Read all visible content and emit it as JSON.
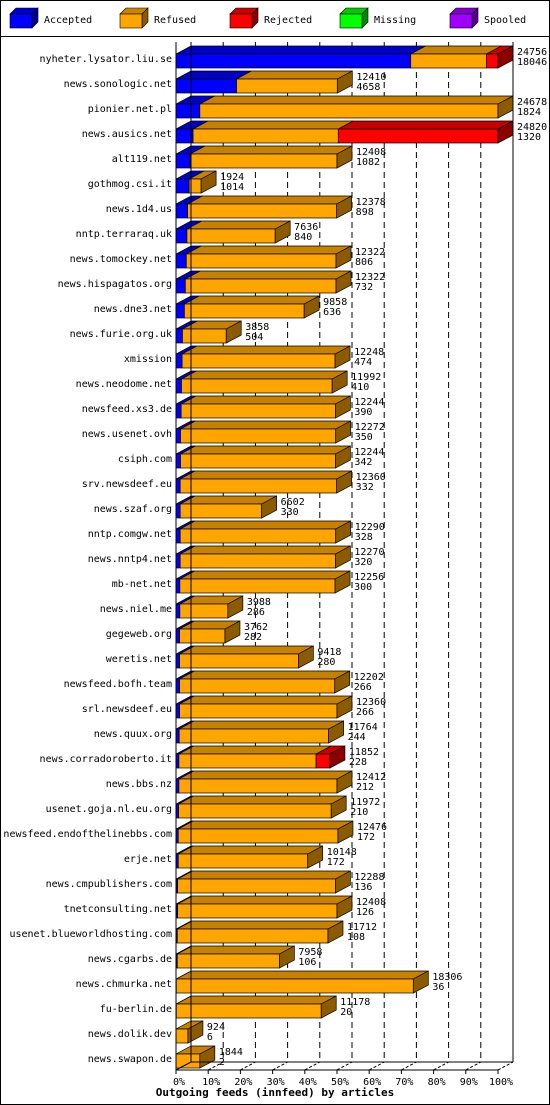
{
  "chart_data": {
    "type": "bar",
    "orientation": "horizontal",
    "stacked": true,
    "three_d": true,
    "title": "Outgoing feeds (innfeed) by articles",
    "grid": true,
    "legend_placement": "top",
    "xlim": [
      0,
      100
    ],
    "x_ticks": [
      "0%",
      "10%",
      "20%",
      "30%",
      "40%",
      "50%",
      "60%",
      "70%",
      "80%",
      "90%",
      "100%"
    ],
    "legend": [
      {
        "key": "accepted",
        "label": "Accepted",
        "color": "#0000ff"
      },
      {
        "key": "refused",
        "label": "Refused",
        "color": "#ffa500"
      },
      {
        "key": "rejected",
        "label": "Rejected",
        "color": "#ff0000"
      },
      {
        "key": "missing",
        "label": "Missing",
        "color": "#00ff00"
      },
      {
        "key": "spooled",
        "label": "Spooled",
        "color": "#a000ff"
      }
    ],
    "rows": [
      {
        "label": "nyheter.lysator.liu.se",
        "total": "24756",
        "accepted": "18046",
        "pct": {
          "accepted": 72.9,
          "refused": 23.5,
          "rejected": 3.6,
          "missing": 0,
          "spooled": 0
        }
      },
      {
        "label": "news.sonologic.net",
        "total": "12410",
        "accepted": "4658",
        "pct": {
          "accepted": 18.8,
          "refused": 31.3,
          "rejected": 0,
          "missing": 0,
          "spooled": 0
        }
      },
      {
        "label": "pionier.net.pl",
        "total": "24678",
        "accepted": "1824",
        "pct": {
          "accepted": 7.4,
          "refused": 92.6,
          "rejected": 0,
          "missing": 0,
          "spooled": 0
        }
      },
      {
        "label": "news.ausics.net",
        "total": "24820",
        "accepted": "1320",
        "pct": {
          "accepted": 5.3,
          "refused": 45.1,
          "rejected": 49.6,
          "missing": 0,
          "spooled": 0
        }
      },
      {
        "label": "alt119.net",
        "total": "12408",
        "accepted": "1082",
        "pct": {
          "accepted": 4.4,
          "refused": 45.6,
          "rejected": 0,
          "missing": 0,
          "spooled": 0
        }
      },
      {
        "label": "gothmog.csi.it",
        "total": "1924",
        "accepted": "1014",
        "pct": {
          "accepted": 4.1,
          "refused": 3.7,
          "rejected": 0,
          "missing": 0,
          "spooled": 0
        }
      },
      {
        "label": "news.1d4.us",
        "total": "12378",
        "accepted": "898",
        "pct": {
          "accepted": 3.6,
          "refused": 46.3,
          "rejected": 0,
          "missing": 0,
          "spooled": 0
        }
      },
      {
        "label": "nntp.terraraq.uk",
        "total": "7636",
        "accepted": "840",
        "pct": {
          "accepted": 3.4,
          "refused": 27.4,
          "rejected": 0,
          "missing": 0,
          "spooled": 0
        }
      },
      {
        "label": "news.tomockey.net",
        "total": "12322",
        "accepted": "806",
        "pct": {
          "accepted": 3.2,
          "refused": 46.5,
          "rejected": 0,
          "missing": 0,
          "spooled": 0
        }
      },
      {
        "label": "news.hispagatos.org",
        "total": "12322",
        "accepted": "732",
        "pct": {
          "accepted": 2.9,
          "refused": 46.8,
          "rejected": 0,
          "missing": 0,
          "spooled": 0
        }
      },
      {
        "label": "news.dne3.net",
        "total": "9858",
        "accepted": "636",
        "pct": {
          "accepted": 2.6,
          "refused": 37.2,
          "rejected": 0,
          "missing": 0,
          "spooled": 0
        }
      },
      {
        "label": "news.furie.org.uk",
        "total": "3858",
        "accepted": "504",
        "pct": {
          "accepted": 2.0,
          "refused": 13.6,
          "rejected": 0,
          "missing": 0,
          "spooled": 0
        }
      },
      {
        "label": "xmission",
        "total": "12248",
        "accepted": "474",
        "pct": {
          "accepted": 1.9,
          "refused": 47.5,
          "rejected": 0,
          "missing": 0,
          "spooled": 0
        }
      },
      {
        "label": "news.neodome.net",
        "total": "11992",
        "accepted": "410",
        "pct": {
          "accepted": 1.7,
          "refused": 46.8,
          "rejected": 0,
          "missing": 0,
          "spooled": 0
        }
      },
      {
        "label": "newsfeed.xs3.de",
        "total": "12244",
        "accepted": "390",
        "pct": {
          "accepted": 1.6,
          "refused": 47.9,
          "rejected": 0,
          "missing": 0,
          "spooled": 0
        }
      },
      {
        "label": "news.usenet.ovh",
        "total": "12272",
        "accepted": "350",
        "pct": {
          "accepted": 1.4,
          "refused": 48.2,
          "rejected": 0,
          "missing": 0,
          "spooled": 0
        }
      },
      {
        "label": "csiph.com",
        "total": "12244",
        "accepted": "342",
        "pct": {
          "accepted": 1.4,
          "refused": 48.1,
          "rejected": 0,
          "missing": 0,
          "spooled": 0
        }
      },
      {
        "label": "srv.newsdeef.eu",
        "total": "12360",
        "accepted": "332",
        "pct": {
          "accepted": 1.3,
          "refused": 48.6,
          "rejected": 0,
          "missing": 0,
          "spooled": 0
        }
      },
      {
        "label": "news.szaf.org",
        "total": "6602",
        "accepted": "330",
        "pct": {
          "accepted": 1.3,
          "refused": 25.3,
          "rejected": 0,
          "missing": 0,
          "spooled": 0
        }
      },
      {
        "label": "nntp.comgw.net",
        "total": "12290",
        "accepted": "328",
        "pct": {
          "accepted": 1.3,
          "refused": 48.3,
          "rejected": 0,
          "missing": 0,
          "spooled": 0
        }
      },
      {
        "label": "news.nntp4.net",
        "total": "12270",
        "accepted": "320",
        "pct": {
          "accepted": 1.3,
          "refused": 48.2,
          "rejected": 0,
          "missing": 0,
          "spooled": 0
        }
      },
      {
        "label": "mb-net.net",
        "total": "12256",
        "accepted": "300",
        "pct": {
          "accepted": 1.2,
          "refused": 48.2,
          "rejected": 0,
          "missing": 0,
          "spooled": 0
        }
      },
      {
        "label": "news.niel.me",
        "total": "3988",
        "accepted": "286",
        "pct": {
          "accepted": 1.2,
          "refused": 14.9,
          "rejected": 0,
          "missing": 0,
          "spooled": 0
        }
      },
      {
        "label": "gegeweb.org",
        "total": "3762",
        "accepted": "282",
        "pct": {
          "accepted": 1.1,
          "refused": 14.1,
          "rejected": 0,
          "missing": 0,
          "spooled": 0
        }
      },
      {
        "label": "weretis.net",
        "total": "9418",
        "accepted": "280",
        "pct": {
          "accepted": 1.1,
          "refused": 36.9,
          "rejected": 0,
          "missing": 0,
          "spooled": 0
        }
      },
      {
        "label": "newsfeed.bofh.team",
        "total": "12202",
        "accepted": "266",
        "pct": {
          "accepted": 1.1,
          "refused": 48.2,
          "rejected": 0,
          "missing": 0,
          "spooled": 0
        }
      },
      {
        "label": "srl.newsdeef.eu",
        "total": "12360",
        "accepted": "266",
        "pct": {
          "accepted": 1.1,
          "refused": 48.9,
          "rejected": 0,
          "missing": 0,
          "spooled": 0
        }
      },
      {
        "label": "news.quux.org",
        "total": "11764",
        "accepted": "244",
        "pct": {
          "accepted": 1.0,
          "refused": 46.4,
          "rejected": 0,
          "missing": 0,
          "spooled": 0
        }
      },
      {
        "label": "news.corradoroberto.it",
        "total": "11852",
        "accepted": "228",
        "pct": {
          "accepted": 0.9,
          "refused": 42.6,
          "rejected": 4.3,
          "missing": 0,
          "spooled": 0
        }
      },
      {
        "label": "news.bbs.nz",
        "total": "12412",
        "accepted": "212",
        "pct": {
          "accepted": 0.9,
          "refused": 49.1,
          "rejected": 0,
          "missing": 0,
          "spooled": 0
        }
      },
      {
        "label": "usenet.goja.nl.eu.org",
        "total": "11972",
        "accepted": "210",
        "pct": {
          "accepted": 0.8,
          "refused": 47.4,
          "rejected": 0,
          "missing": 0,
          "spooled": 0
        }
      },
      {
        "label": "newsfeed.endofthelinebbs.com",
        "total": "12476",
        "accepted": "172",
        "pct": {
          "accepted": 0.7,
          "refused": 49.6,
          "rejected": 0,
          "missing": 0,
          "spooled": 0
        }
      },
      {
        "label": "erje.net",
        "total": "10148",
        "accepted": "172",
        "pct": {
          "accepted": 0.7,
          "refused": 40.2,
          "rejected": 0,
          "missing": 0,
          "spooled": 0
        }
      },
      {
        "label": "news.cmpublishers.com",
        "total": "12288",
        "accepted": "136",
        "pct": {
          "accepted": 0.5,
          "refused": 49.0,
          "rejected": 0,
          "missing": 0,
          "spooled": 0
        }
      },
      {
        "label": "tnetconsulting.net",
        "total": "12408",
        "accepted": "126",
        "pct": {
          "accepted": 0.5,
          "refused": 49.5,
          "rejected": 0,
          "missing": 0,
          "spooled": 0
        }
      },
      {
        "label": "usenet.blueworldhosting.com",
        "total": "11712",
        "accepted": "108",
        "pct": {
          "accepted": 0.4,
          "refused": 46.8,
          "rejected": 0,
          "missing": 0,
          "spooled": 0
        }
      },
      {
        "label": "news.cgarbs.de",
        "total": "7958",
        "accepted": "106",
        "pct": {
          "accepted": 0.4,
          "refused": 31.7,
          "rejected": 0,
          "missing": 0,
          "spooled": 0
        }
      },
      {
        "label": "news.chmurka.net",
        "total": "18306",
        "accepted": "36",
        "pct": {
          "accepted": 0.1,
          "refused": 73.6,
          "rejected": 0,
          "missing": 0,
          "spooled": 0
        }
      },
      {
        "label": "fu-berlin.de",
        "total": "11178",
        "accepted": "20",
        "pct": {
          "accepted": 0.1,
          "refused": 45.0,
          "rejected": 0,
          "missing": 0,
          "spooled": 0
        }
      },
      {
        "label": "news.dolik.dev",
        "total": "924",
        "accepted": "6",
        "pct": {
          "accepted": 0.0,
          "refused": 3.7,
          "rejected": 0,
          "missing": 0,
          "spooled": 0
        }
      },
      {
        "label": "news.swapon.de",
        "total": "1844",
        "accepted": "2",
        "pct": {
          "accepted": 0.0,
          "refused": 7.4,
          "rejected": 0,
          "missing": 0,
          "spooled": 0
        }
      }
    ]
  }
}
